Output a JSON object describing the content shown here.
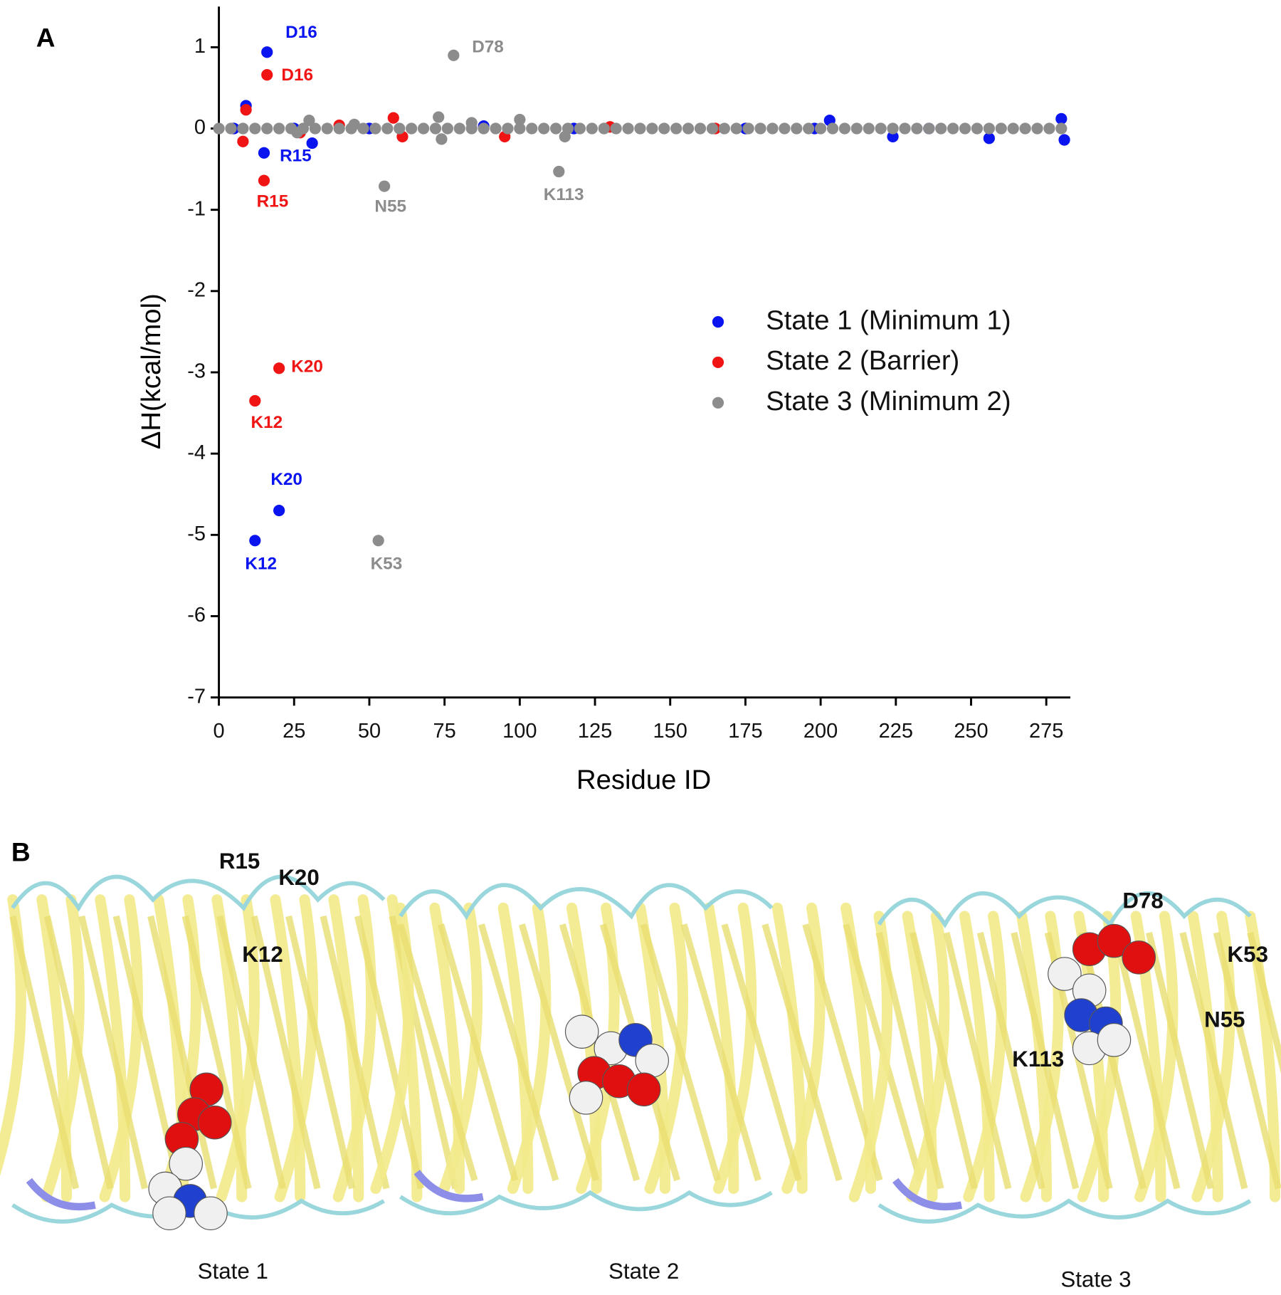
{
  "chart_data": {
    "type": "scatter",
    "panel_label": "A",
    "xlabel": "Residue ID",
    "ylabel": "ΔH(kcal/mol)",
    "xlim": [
      0,
      283
    ],
    "ylim": [
      -7,
      1.5
    ],
    "xticks": [
      0,
      25,
      50,
      75,
      100,
      125,
      150,
      175,
      200,
      225,
      250,
      275
    ],
    "yticks": [
      -7,
      -6,
      -5,
      -4,
      -3,
      -2,
      -1,
      0,
      1
    ],
    "legend": "right",
    "series": [
      {
        "name": "State 1 (Minimum 1)",
        "color": "#0a14f0",
        "x": [
          12,
          20,
          15,
          16,
          9,
          31,
          203,
          224,
          256,
          280,
          281,
          5,
          25,
          50,
          88,
          118,
          175,
          198,
          236
        ],
        "values": [
          -5.07,
          -4.7,
          -0.3,
          0.94,
          0.28,
          -0.18,
          0.1,
          -0.1,
          -0.12,
          0.12,
          -0.14,
          0,
          0,
          0,
          0.03,
          0,
          0,
          0,
          0
        ]
      },
      {
        "name": "State 2 (Barrier)",
        "color": "#f01414",
        "x": [
          12,
          20,
          15,
          16,
          9,
          8,
          58,
          61,
          95,
          40,
          27,
          130,
          165
        ],
        "values": [
          -3.35,
          -2.95,
          -0.64,
          0.66,
          0.23,
          -0.16,
          0.13,
          -0.1,
          -0.1,
          0.04,
          -0.05,
          0.02,
          0
        ]
      },
      {
        "name": "State 3 (Minimum 2)",
        "color": "#8c8c8c",
        "x": [
          0,
          4,
          8,
          12,
          16,
          20,
          24,
          28,
          32,
          36,
          40,
          44,
          48,
          52,
          56,
          60,
          64,
          68,
          72,
          76,
          80,
          84,
          88,
          92,
          96,
          100,
          104,
          108,
          112,
          116,
          120,
          124,
          128,
          132,
          136,
          140,
          144,
          148,
          152,
          156,
          160,
          164,
          168,
          172,
          176,
          180,
          184,
          188,
          192,
          196,
          200,
          204,
          208,
          212,
          216,
          220,
          224,
          228,
          232,
          236,
          240,
          244,
          248,
          252,
          256,
          260,
          264,
          268,
          272,
          276,
          280,
          53,
          55,
          113,
          78,
          73,
          74,
          30,
          100,
          115,
          84,
          45,
          26
        ],
        "values": [
          0,
          0,
          0,
          0,
          0,
          0,
          0,
          0,
          0,
          0,
          0,
          0,
          0,
          0,
          0,
          0,
          0,
          0,
          0,
          0,
          0,
          0,
          0,
          0,
          0,
          0,
          0,
          0,
          0,
          0,
          0,
          0,
          0,
          0,
          0,
          0,
          0,
          0,
          0,
          0,
          0,
          0,
          0,
          0,
          0,
          0,
          0,
          0,
          0,
          0,
          0,
          0,
          0,
          0,
          0,
          0,
          0,
          0,
          0,
          0,
          0,
          0,
          0,
          0,
          0,
          0,
          0,
          0,
          0,
          0,
          0,
          -5.07,
          -0.71,
          -0.53,
          0.9,
          0.14,
          -0.13,
          0.1,
          0.11,
          -0.1,
          0.07,
          0.05,
          -0.05
        ]
      }
    ],
    "annotations": [
      {
        "text": "D16",
        "color": "#0a14f0"
      },
      {
        "text": "D16",
        "color": "#f01414"
      },
      {
        "text": "R15",
        "color": "#0a14f0"
      },
      {
        "text": "R15",
        "color": "#f01414"
      },
      {
        "text": "N55",
        "color": "#8c8c8c"
      },
      {
        "text": "K113",
        "color": "#8c8c8c"
      },
      {
        "text": "D78",
        "color": "#8c8c8c"
      },
      {
        "text": "K20",
        "color": "#f01414"
      },
      {
        "text": "K12",
        "color": "#f01414"
      },
      {
        "text": "K20",
        "color": "#0a14f0"
      },
      {
        "text": "K12",
        "color": "#0a14f0"
      },
      {
        "text": "K53",
        "color": "#8c8c8c"
      }
    ]
  },
  "structures": {
    "panel_label": "B",
    "states": [
      "State 1",
      "State 2",
      "State 3"
    ],
    "residue_labels": [
      "R15",
      "K20",
      "K12",
      "D78",
      "K53",
      "N55",
      "K113"
    ]
  }
}
